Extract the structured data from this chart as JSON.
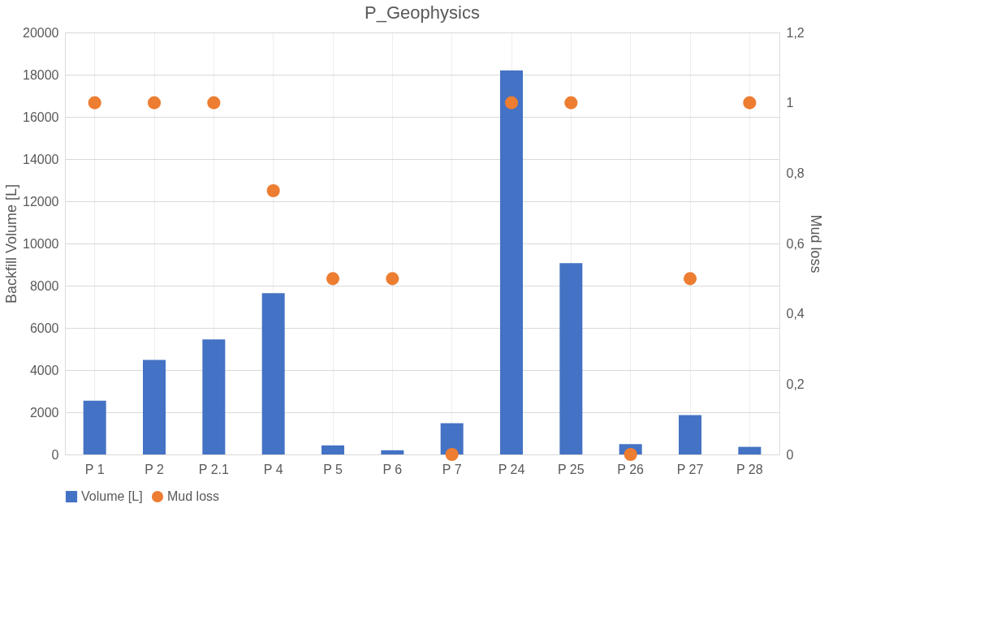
{
  "chart_data": {
    "type": "bar",
    "title": "P_Geophysics",
    "categories": [
      "P 1",
      "P 2",
      "P 2.1",
      "P 4",
      "P 5",
      "P 6",
      "P 7",
      "P 24",
      "P 25",
      "P 26",
      "P 27",
      "P 28"
    ],
    "series": [
      {
        "name": "Volume [L]",
        "color": "#4472c4",
        "values": [
          2550,
          4480,
          5450,
          7640,
          430,
          200,
          1480,
          18200,
          9070,
          490,
          1870,
          360
        ]
      },
      {
        "name": "Mud loss",
        "type": "scatter",
        "axis": "y2",
        "color": "#ed7d31",
        "values": [
          1,
          1,
          1,
          0.75,
          0.5,
          0.5,
          0,
          1,
          1,
          0,
          0.5,
          1
        ]
      }
    ],
    "ylabel": "Backfill Volume [L]",
    "y2label": "Mud loss",
    "ylim": [
      0,
      20000
    ],
    "yticks": [
      0,
      2000,
      4000,
      6000,
      8000,
      10000,
      12000,
      14000,
      16000,
      18000,
      20000
    ],
    "y2lim": [
      0,
      1.2
    ],
    "y2ticks": [
      0,
      {
        "value": 0.2,
        "label": "0,2"
      },
      {
        "value": 0.4,
        "label": "0,4"
      },
      {
        "value": 0.6,
        "label": "0,6"
      },
      {
        "value": 0.8,
        "label": "0,8"
      },
      1,
      {
        "value": 1.2,
        "label": "1,2"
      }
    ],
    "grid": true,
    "legend": "bottom",
    "marker": "circle"
  }
}
